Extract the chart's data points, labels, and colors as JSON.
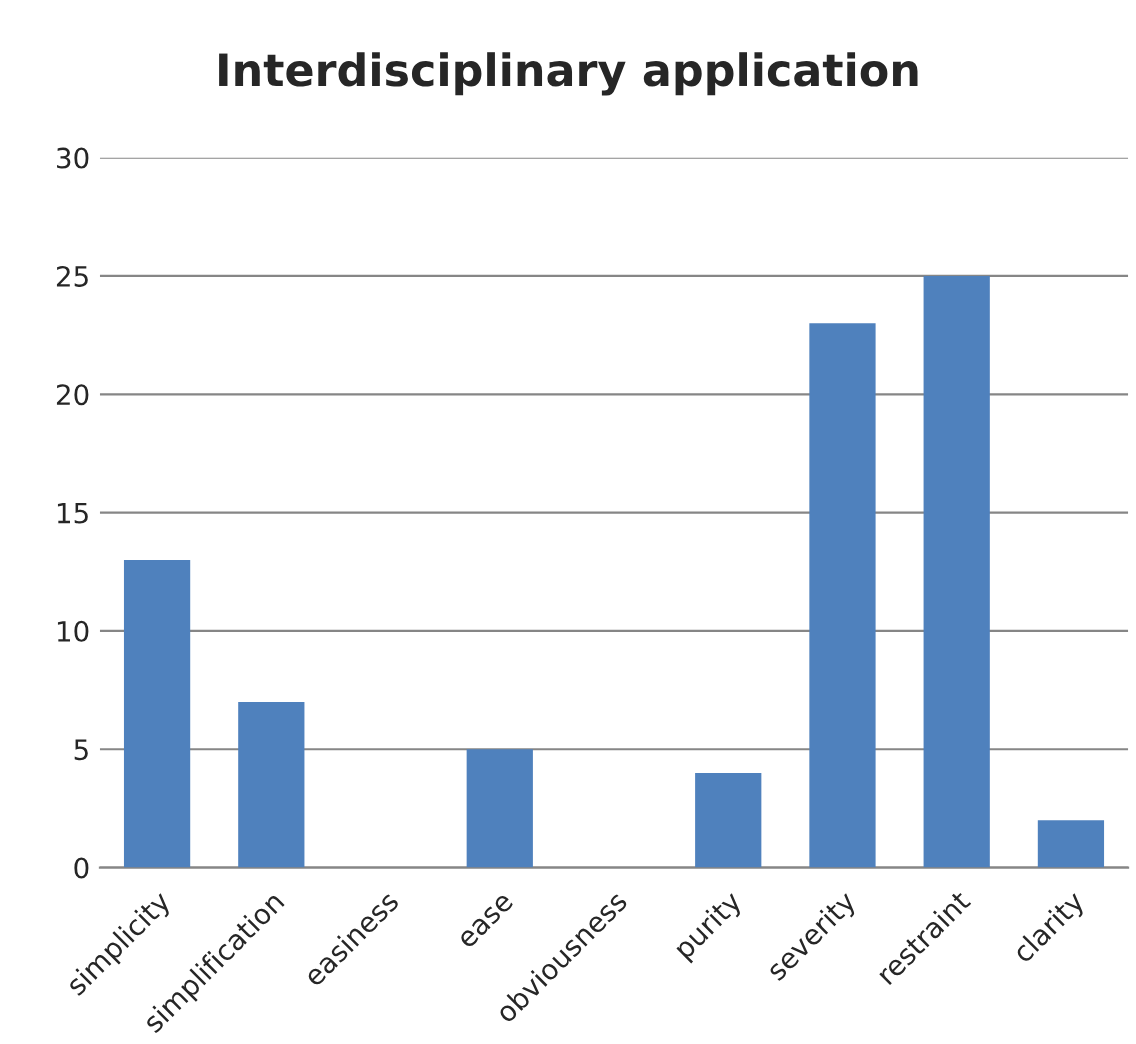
{
  "chart_data": {
    "type": "bar",
    "title": "Interdisciplinary application",
    "categories": [
      "simplicity",
      "simplification",
      "easiness",
      "ease",
      "obviousness",
      "purity",
      "severity",
      "restraint",
      "clarity"
    ],
    "values": [
      13,
      7,
      0,
      5,
      0,
      4,
      23,
      25,
      2
    ],
    "color": "#4f81bd",
    "ylim": [
      0,
      30
    ],
    "yticks": [
      0,
      5,
      10,
      15,
      20,
      25,
      30
    ],
    "grid": "y",
    "legend": false
  }
}
